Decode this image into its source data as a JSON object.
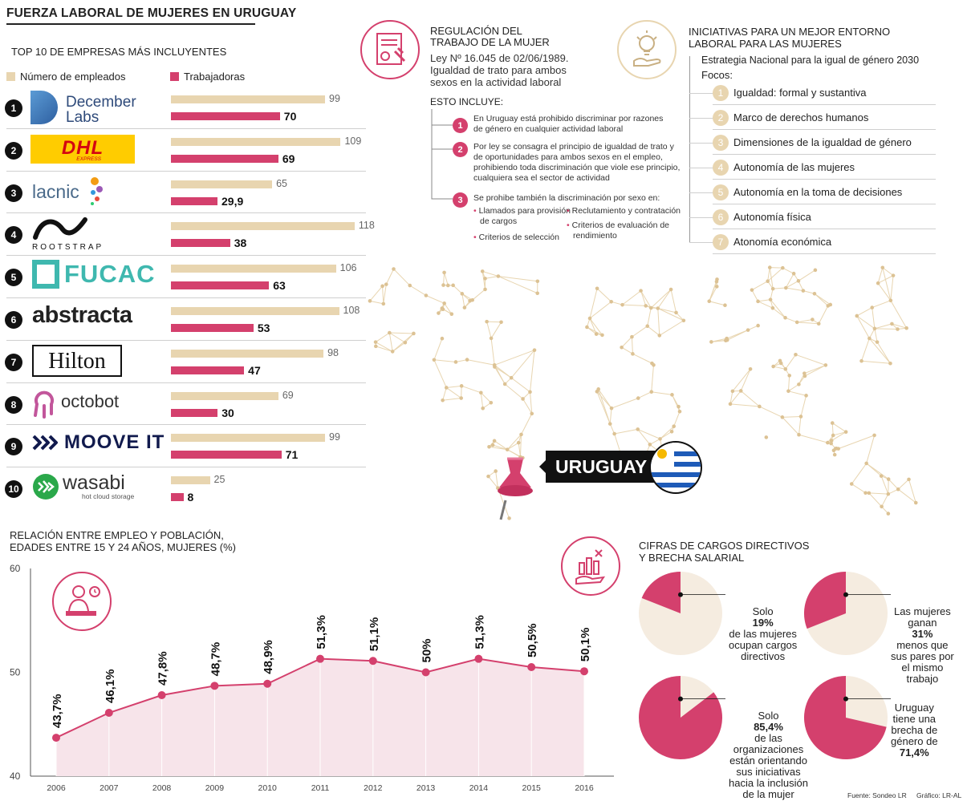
{
  "header": {
    "title": "FUERZA LABORAL DE MUJERES EN URUGUAY",
    "top10_title": "TOP 10 DE EMPRESAS MÁS INCLUYENTES",
    "legend_employees": "Número de empleados",
    "legend_women": "Trabajadoras"
  },
  "colors": {
    "beige": "#e8d5b0",
    "pink": "#d4406d",
    "dark": "#111111"
  },
  "companies": [
    {
      "rank": "1",
      "name": "December Labs",
      "employees": 99,
      "women": 70,
      "employees_label": "99",
      "women_label": "70"
    },
    {
      "rank": "2",
      "name": "DHL",
      "employees": 109,
      "women": 69,
      "employees_label": "109",
      "women_label": "69"
    },
    {
      "rank": "3",
      "name": "lacnic",
      "employees": 65,
      "women": 29.9,
      "employees_label": "65",
      "women_label": "29,9"
    },
    {
      "rank": "4",
      "name": "ROOTSTRAP",
      "employees": 118,
      "women": 38,
      "employees_label": "118",
      "women_label": "38"
    },
    {
      "rank": "5",
      "name": "FUCAC",
      "employees": 106,
      "women": 63,
      "employees_label": "106",
      "women_label": "63"
    },
    {
      "rank": "6",
      "name": "abstracta",
      "employees": 108,
      "women": 53,
      "employees_label": "108",
      "women_label": "53"
    },
    {
      "rank": "7",
      "name": "Hilton",
      "employees": 98,
      "women": 47,
      "employees_label": "98",
      "women_label": "47"
    },
    {
      "rank": "8",
      "name": "octobot",
      "employees": 69,
      "women": 30,
      "employees_label": "69",
      "women_label": "30"
    },
    {
      "rank": "9",
      "name": "MOOVE IT",
      "employees": 99,
      "women": 71,
      "employees_label": "99",
      "women_label": "71"
    },
    {
      "rank": "10",
      "name": "wasabi",
      "employees": 25,
      "women": 8,
      "employees_label": "25",
      "women_label": "8"
    }
  ],
  "logos": {
    "december_1": "December",
    "december_2": "Labs",
    "dhl": "DHL",
    "dhl_sub": "EXPRESS",
    "lacnic": "lacnic",
    "rootstrap": "ROOTSTRAP",
    "fucac": "FUCAC",
    "abstracta": "abstracta",
    "hilton": "Hilton",
    "octobot": "octobot",
    "mooveit": "MOOVE IT",
    "wasabi": "wasabi",
    "wasabi_sub": "hot cloud storage"
  },
  "regulation": {
    "title_1": "REGULACIÓN DEL",
    "title_2": "TRABAJO DE LA MUJER",
    "law_1": "Ley Nº 16.045 de 02/06/1989.",
    "law_2": "Igualdad de trato para ambos",
    "law_3": "sexos en la actividad laboral",
    "includes": "ESTO INCLUYE:",
    "item1_1": "En Uruguay está prohibido discriminar por razones",
    "item1_2": "de género  en cualquier actividad laboral",
    "item2_1": "Por ley se consagra el principio de igualdad de trato y",
    "item2_2": "de oportunidades para ambos sexos en el empleo,",
    "item2_3": "prohibiendo toda discriminación que viole ese principio,",
    "item2_4": "cualquiera sea el sector de actividad",
    "item3": "Se prohibe también la discriminación por sexo en:",
    "sub_a_1": "Llamados para provisión",
    "sub_a_2": "de cargos",
    "sub_b": "Reclutamiento y contratación",
    "sub_c_1": "Criterios de evaluación de",
    "sub_c_2": "rendimiento",
    "sub_d": "Criterios de selección"
  },
  "initiatives": {
    "title_1": "INICIATIVAS PARA UN MEJOR ENTORNO",
    "title_2": "LABORAL PARA LAS MUJERES",
    "strategy": "Estrategia Nacional para la igual de género 2030",
    "focos": "Focos:",
    "items": [
      {
        "n": "1",
        "label": "Igualdad: formal y sustantiva"
      },
      {
        "n": "2",
        "label": "Marco de derechos humanos"
      },
      {
        "n": "3",
        "label": "Dimensiones de la igualdad de género"
      },
      {
        "n": "4",
        "label": "Autonomía de las mujeres"
      },
      {
        "n": "5",
        "label": "Autonomía en la toma de decisiones"
      },
      {
        "n": "6",
        "label": "Autonomía física"
      },
      {
        "n": "7",
        "label": "Atonomía económica"
      }
    ]
  },
  "map": {
    "country_label": "URUGUAY"
  },
  "line_title_1": "RELACIÓN ENTRE EMPLEO Y POBLACIÓN,",
  "line_title_2": "EDADES ENTRE 15 Y 24 AÑOS, MUJERES (%)",
  "chart_data": [
    {
      "type": "bar",
      "categories": [
        "December Labs",
        "DHL",
        "lacnic",
        "ROOTSTRAP",
        "FUCAC",
        "abstracta",
        "Hilton",
        "octobot",
        "MOOVE IT",
        "wasabi"
      ],
      "series": [
        {
          "name": "Número de empleados",
          "values": [
            99,
            109,
            65,
            118,
            106,
            108,
            98,
            69,
            99,
            25
          ]
        },
        {
          "name": "Trabajadoras",
          "values": [
            70,
            69,
            29.9,
            38,
            63,
            53,
            47,
            30,
            71,
            8
          ]
        }
      ],
      "title": "TOP 10 DE EMPRESAS MÁS INCLUYENTES",
      "orientation": "horizontal"
    },
    {
      "type": "area",
      "x": [
        "2006",
        "2007",
        "2008",
        "2009",
        "2010",
        "2011",
        "2012",
        "2013",
        "2014",
        "2015",
        "2016"
      ],
      "values": [
        43.7,
        46.1,
        47.8,
        48.7,
        48.9,
        51.3,
        51.1,
        50,
        51.3,
        50.5,
        50.1
      ],
      "labels": [
        "43,7%",
        "46,1%",
        "47,8%",
        "48,7%",
        "48,9%",
        "51,3%",
        "51,1%",
        "50%",
        "51,3%",
        "50,5%",
        "50,1%"
      ],
      "title": "RELACIÓN ENTRE EMPLEO Y POBLACIÓN, EDADES ENTRE 15 Y 24 AÑOS, MUJERES (%)",
      "yticks": [
        "40",
        "50",
        "60"
      ],
      "ylim": [
        40,
        60
      ]
    },
    {
      "type": "pie",
      "title": "CIFRAS DE CARGOS DIRECTIVOS Y BRECHA SALARIAL",
      "pies": [
        {
          "value": 19,
          "lines": [
            "Solo",
            "19%",
            "de las mujeres",
            "ocupan cargos",
            "directivos"
          ]
        },
        {
          "value": 31,
          "lines": [
            "Las mujeres",
            "ganan",
            "31%",
            "menos que",
            "sus pares por",
            " el mismo",
            "trabajo"
          ]
        },
        {
          "value": 85.4,
          "lines": [
            "Solo",
            "85,4%",
            "de las",
            "organizaciones",
            "están orientando",
            "sus iniciativas",
            "hacia la inclusión",
            "de la mujer"
          ]
        },
        {
          "value": 71.4,
          "lines": [
            "Uruguay",
            "tiene una",
            "brecha de",
            "género de",
            "71,4%"
          ]
        }
      ]
    }
  ],
  "pies_title_1": "CIFRAS DE CARGOS DIRECTIVOS",
  "pies_title_2": "Y BRECHA SALARIAL",
  "footer": {
    "source": "Fuente: Sondeo LR",
    "credit": "Gráfico: LR-AL"
  }
}
